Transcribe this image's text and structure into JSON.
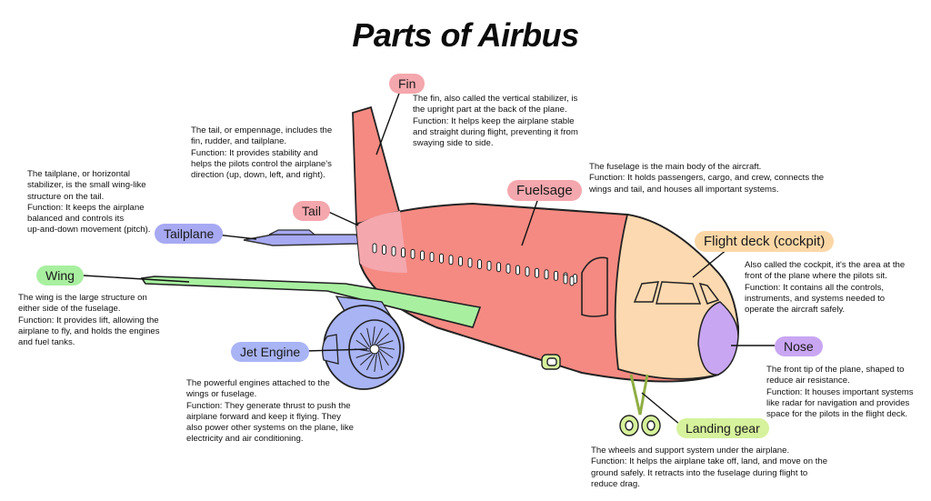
{
  "title": "Parts of Airbus",
  "colors": {
    "fin": "#f4a7ad",
    "tail": "#f4a7ad",
    "fuselage": "#f4a7ad",
    "tailplane": "#a7a9f2",
    "wing": "#a8f0a0",
    "jet_engine": "#a9b4f5",
    "flight_deck": "#fbd7a6",
    "nose": "#c9a6f2",
    "landing_gear": "#d6f29c",
    "body_fill": "#f58a82",
    "cockpit_fill": "#fcd9b0"
  },
  "parts": {
    "fin": {
      "label": "Fin",
      "description": [
        "The fin, also called the vertical stabilizer, is",
        "the upright part at the back of the plane.",
        "Function:   It helps keep the airplane stable",
        "and straight during flight, preventing it from",
        "swaying side to side."
      ]
    },
    "tail": {
      "label": "Tail",
      "description": [
        "The tail, or empennage, includes the",
        "fin, rudder, and tailplane.",
        "Function: It provides stability and",
        "helps the pilots control the airplane's",
        "direction (up, down, left, and right)."
      ]
    },
    "tailplane": {
      "label": "Tailplane",
      "description": [
        "The tailplane, or horizontal",
        "stabilizer, is the small wing-like",
        "structure on the tail.",
        "Function: It keeps the airplane",
        "balanced and controls its",
        "up-and-down movement (pitch)."
      ]
    },
    "fuselage": {
      "label": "Fuelsage",
      "description": [
        "The fuselage is the main body of the aircraft.",
        "Function: It holds passengers, cargo, and crew, connects the",
        "wings and tail, and houses all important systems."
      ]
    },
    "flight_deck": {
      "label": "Flight deck (cockpit)",
      "description": [
        "Also called the cockpit, it's the area at the",
        "front of the plane where the pilots sit.",
        "Function: It contains all the controls,",
        "instruments, and systems needed to",
        "operate the aircraft safely."
      ]
    },
    "wing": {
      "label": "Wing",
      "description": [
        "The wing is the large structure on",
        "either side of the fuselage.",
        "Function: It provides lift, allowing the",
        "airplane to fly, and holds the engines",
        "and fuel tanks."
      ]
    },
    "jet_engine": {
      "label": "Jet Engine",
      "description": [
        "The powerful engines attached to the",
        "wings or fuselage.",
        "Function: They generate thrust to push the",
        "airplane forward and keep it flying. They",
        "also power other systems on the plane, like",
        "electricity and air conditioning."
      ]
    },
    "nose": {
      "label": "Nose",
      "description": [
        "The front tip of the plane, shaped to",
        "reduce air resistance.",
        "Function: It houses important systems",
        "like radar for navigation and provides",
        "space for the pilots in the flight deck."
      ]
    },
    "landing_gear": {
      "label": "Landing gear",
      "description": [
        "The wheels and support system under the airplane.",
        "Function: It helps the airplane take off, land, and move on the",
        "ground safely. It retracts into the fuselage during flight to",
        "reduce drag."
      ]
    }
  }
}
